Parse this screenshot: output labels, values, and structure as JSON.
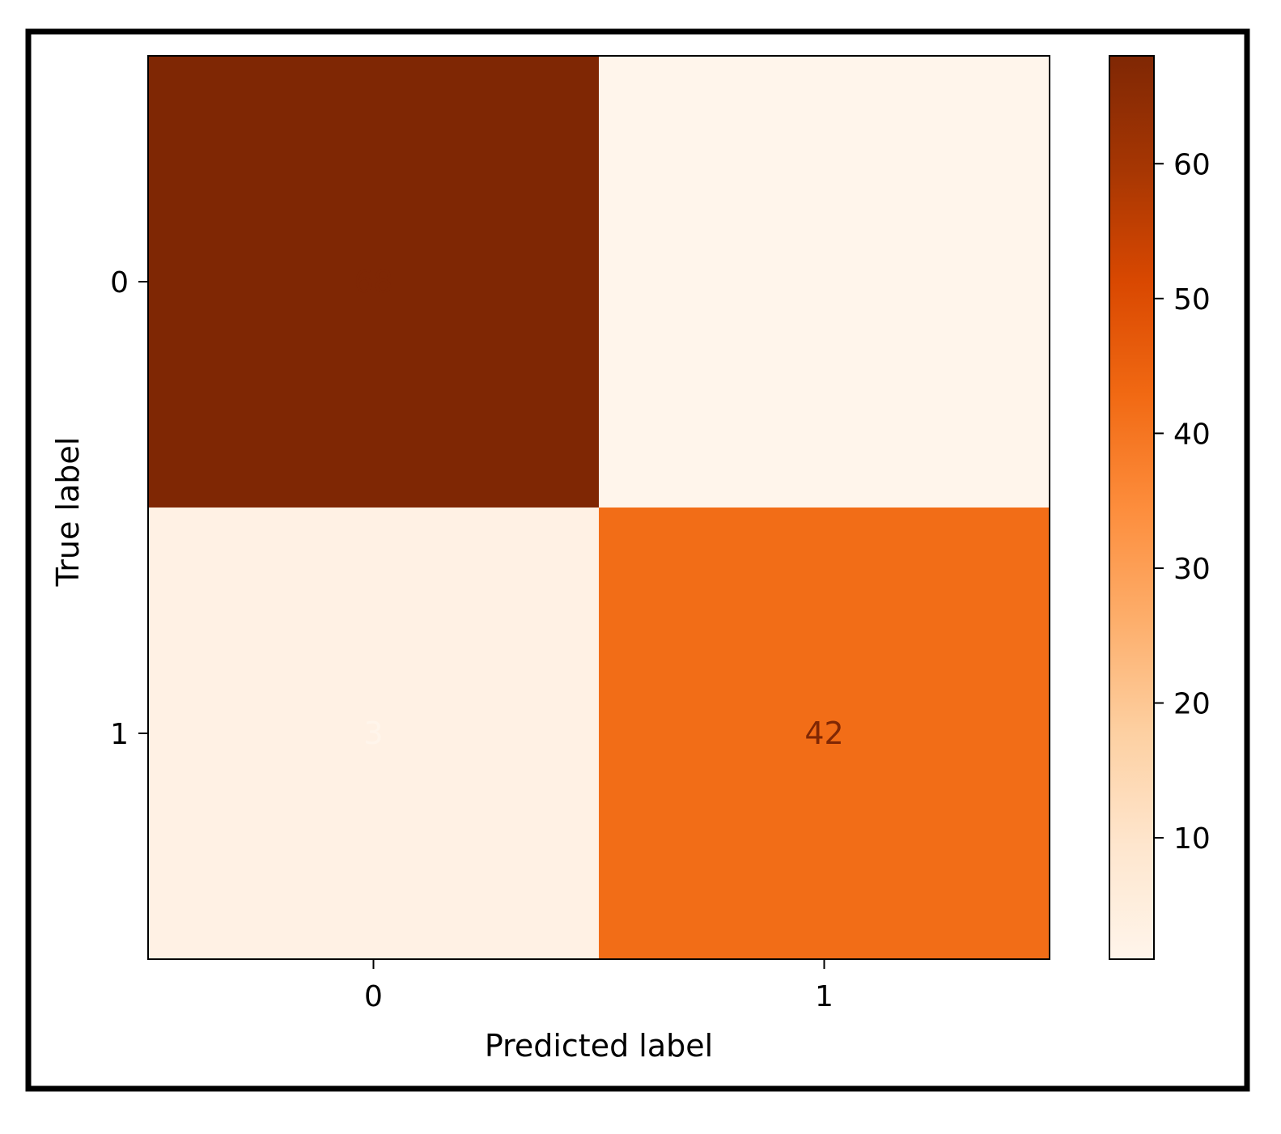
{
  "chart_data": {
    "type": "heatmap",
    "title": "",
    "xlabel": "Predicted label",
    "ylabel": "True label",
    "x_categories": [
      "0",
      "1"
    ],
    "y_categories": [
      "0",
      "1"
    ],
    "values": [
      [
        68,
        1
      ],
      [
        3,
        42
      ]
    ],
    "colormap": "Oranges",
    "colormap_stops": [
      "#fff5eb",
      "#fee6ce",
      "#fdd0a2",
      "#fdae6b",
      "#fd8d3c",
      "#f16913",
      "#d94801",
      "#a63603",
      "#7f2704"
    ],
    "cell_text_colors": {
      "light_cell": "#7f2704",
      "dark_cell": "#fff5eb"
    },
    "colorbar": {
      "range": [
        1,
        68
      ],
      "ticks": [
        10,
        20,
        30,
        40,
        50,
        60
      ],
      "tick_labels": [
        "10",
        "20",
        "30",
        "40",
        "50",
        "60"
      ]
    },
    "grid": false,
    "legend": "colorbar-right"
  }
}
